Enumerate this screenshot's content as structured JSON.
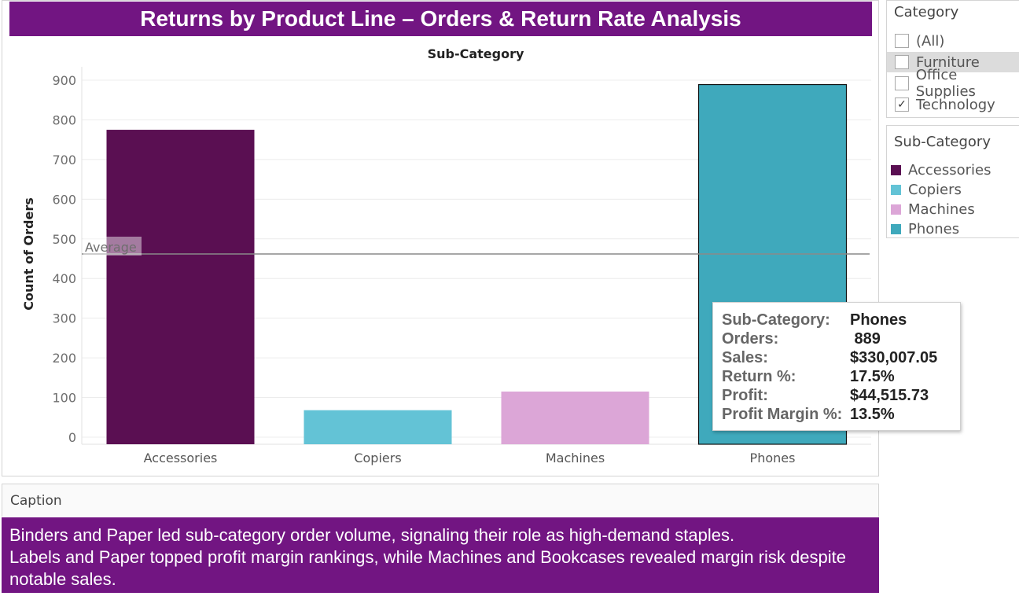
{
  "title": "Returns by Product Line – Orders & Return Rate Analysis",
  "colors": {
    "title_bg": "#721582",
    "caption_bg": "#721582",
    "average_line": "#8a8a8a"
  },
  "chart_data": {
    "type": "bar",
    "title": "Sub-Category",
    "xlabel": "",
    "ylabel": "Count of Orders",
    "ylim": [
      0,
      900
    ],
    "yticks": [
      0,
      100,
      200,
      300,
      400,
      500,
      600,
      700,
      800,
      900
    ],
    "categories": [
      "Accessories",
      "Copiers",
      "Machines",
      "Phones"
    ],
    "values": [
      775,
      68,
      115,
      889
    ],
    "bar_colors": [
      "#5a0f52",
      "#63c3d6",
      "#dca6d7",
      "#3fa9bc"
    ],
    "highlighted": "Phones",
    "reference_line": {
      "label": "Average",
      "value": 462
    },
    "grid": true
  },
  "tooltip": {
    "rows": [
      {
        "key": "Sub-Category:",
        "value": "Phones"
      },
      {
        "key": "Orders:",
        "value": " 889"
      },
      {
        "key": "Sales:",
        "value": "$330,007.05"
      },
      {
        "key": "Return %:",
        "value": "17.5%"
      },
      {
        "key": "Profit:",
        "value": "$44,515.73"
      },
      {
        "key": "Profit Margin %:",
        "value": "13.5%"
      }
    ]
  },
  "filter": {
    "title": "Category",
    "items": [
      {
        "label": "(All)",
        "checked": false,
        "highlighted": false
      },
      {
        "label": "Furniture",
        "checked": false,
        "highlighted": true
      },
      {
        "label": "Office Supplies",
        "checked": false,
        "highlighted": false
      },
      {
        "label": "Technology",
        "checked": true,
        "highlighted": false
      }
    ]
  },
  "legend": {
    "title": "Sub-Category",
    "items": [
      {
        "label": "Accessories",
        "color": "#5a0f52"
      },
      {
        "label": "Copiers",
        "color": "#63c3d6"
      },
      {
        "label": "Machines",
        "color": "#dca6d7"
      },
      {
        "label": "Phones",
        "color": "#3fa9bc"
      }
    ]
  },
  "caption": {
    "label": "Caption",
    "lines": [
      "Binders and Paper led sub-category order volume, signaling their role as high-demand staples.",
      "Labels and Paper topped profit margin rankings, while Machines and Bookcases revealed margin risk despite notable sales."
    ]
  }
}
